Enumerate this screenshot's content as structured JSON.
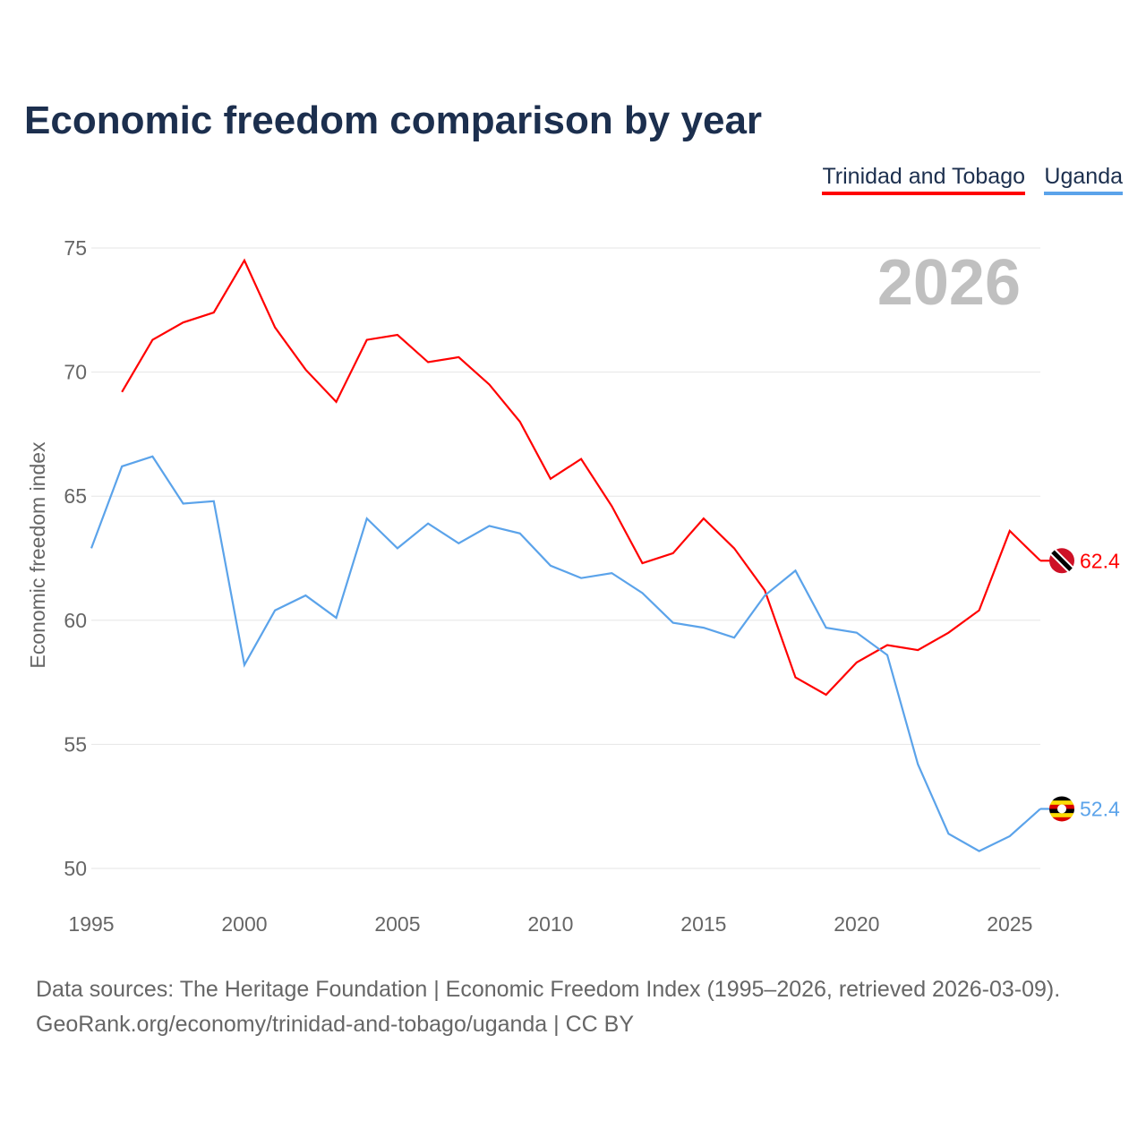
{
  "title": "Economic freedom comparison by year",
  "legend": [
    "Trinidad and Tobago",
    "Uganda"
  ],
  "year_label": "2026",
  "footer": {
    "line1": "Data sources: The Heritage Foundation | Economic Freedom Index (1995–2026, retrieved 2026-03-09).",
    "line2": "GeoRank.org/economy/trinidad-and-tobago/uganda | CC BY"
  },
  "chart_data": {
    "type": "line",
    "title": "Economic freedom comparison by year",
    "xlabel": "",
    "ylabel": "Economic freedom index",
    "xlim": [
      1995,
      2026
    ],
    "ylim": [
      50,
      75
    ],
    "xticks": [
      1995,
      2000,
      2005,
      2010,
      2015,
      2020,
      2025
    ],
    "yticks": [
      50,
      55,
      60,
      65,
      70,
      75
    ],
    "grid": true,
    "legend_position": "top-right",
    "series": [
      {
        "name": "Trinidad and Tobago",
        "color": "#ff0000",
        "end_label": "62.4",
        "x": [
          1996,
          1997,
          1998,
          1999,
          2000,
          2001,
          2002,
          2003,
          2004,
          2005,
          2006,
          2007,
          2008,
          2009,
          2010,
          2011,
          2012,
          2013,
          2014,
          2015,
          2016,
          2017,
          2018,
          2019,
          2020,
          2021,
          2022,
          2023,
          2024,
          2025,
          2026
        ],
        "y": [
          69.2,
          71.3,
          72.0,
          72.4,
          74.5,
          71.8,
          70.1,
          68.8,
          71.3,
          71.5,
          70.4,
          70.6,
          69.5,
          68.0,
          65.7,
          66.5,
          64.6,
          62.3,
          62.7,
          64.1,
          62.9,
          61.2,
          57.7,
          57.0,
          58.3,
          59.0,
          58.8,
          59.5,
          60.4,
          63.6,
          62.4
        ]
      },
      {
        "name": "Uganda",
        "color": "#5ba3ea",
        "end_label": "52.4",
        "x": [
          1995,
          1996,
          1997,
          1998,
          1999,
          2000,
          2001,
          2002,
          2003,
          2004,
          2005,
          2006,
          2007,
          2008,
          2009,
          2010,
          2011,
          2012,
          2013,
          2014,
          2015,
          2016,
          2017,
          2018,
          2019,
          2020,
          2021,
          2022,
          2023,
          2024,
          2025,
          2026
        ],
        "y": [
          62.9,
          66.2,
          66.6,
          64.7,
          64.8,
          58.2,
          60.4,
          61.0,
          60.1,
          64.1,
          62.9,
          63.9,
          63.1,
          63.8,
          63.5,
          62.2,
          61.7,
          61.9,
          61.1,
          59.9,
          59.7,
          59.3,
          61.0,
          62.0,
          59.7,
          59.5,
          58.6,
          54.2,
          51.4,
          50.7,
          51.3,
          52.4
        ]
      }
    ]
  }
}
